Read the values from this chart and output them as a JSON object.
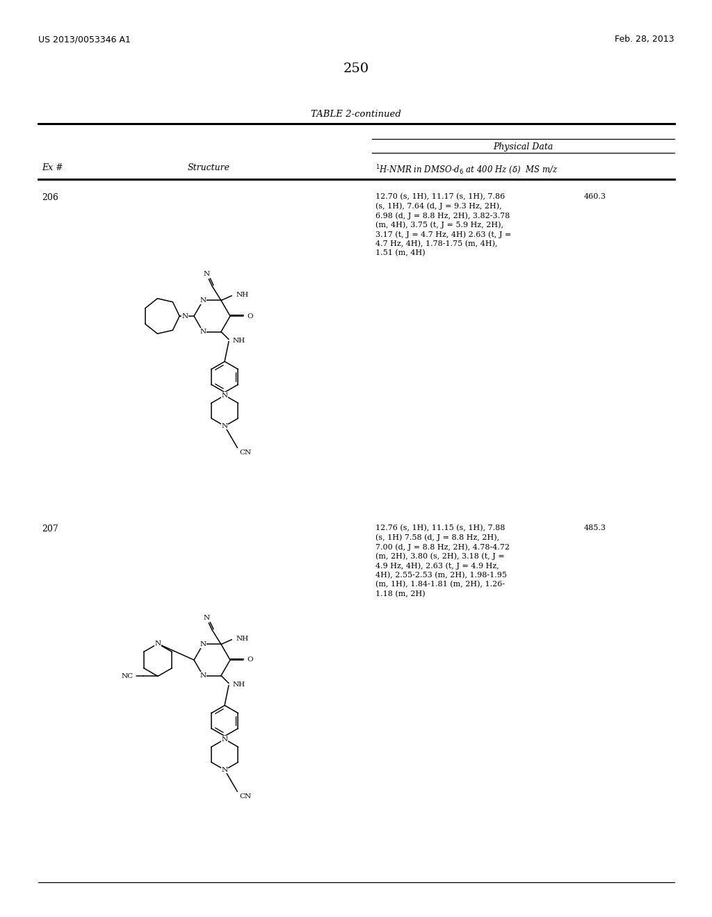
{
  "page_number": "250",
  "left_header": "US 2013/0053346 A1",
  "right_header": "Feb. 28, 2013",
  "table_title": "TABLE 2-continued",
  "col_ex": "Ex #",
  "col_structure": "Structure",
  "col_physical": "Physical Data",
  "ex206_num": "206",
  "ex206_nmr_lines": [
    "12.70 (s, 1H), 11.17 (s, 1H), 7.86",
    "(s, 1H), 7.64 (d, J = 9.3 Hz, 2H),",
    "6.98 (d, J = 8.8 Hz, 2H), 3.82-3.78",
    "(m, 4H), 3.75 (t, J = 5.9 Hz, 2H),",
    "3.17 (t, J = 4.7 Hz, 4H) 2.63 (t, J =",
    "4.7 Hz, 4H), 1.78-1.75 (m, 4H),",
    "1.51 (m, 4H)"
  ],
  "ex206_ms": "460.3",
  "ex207_num": "207",
  "ex207_nmr_lines": [
    "12.76 (s, 1H), 11.15 (s, 1H), 7.88",
    "(s, 1H) 7.58 (d, J = 8.8 Hz, 2H),",
    "7.00 (d, J = 8.8 Hz, 2H), 4.78-4.72",
    "(m, 2H), 3.80 (s, 2H), 3.18 (t, J =",
    "4.9 Hz, 4H), 2.63 (t, J = 4.9 Hz,",
    "4H), 2.55-2.53 (m, 2H), 1.98-1.95",
    "(m, 1H), 1.84-1.81 (m, 2H), 1.26-",
    "1.18 (m, 2H)"
  ],
  "ex207_ms": "485.3",
  "background_color": "#ffffff"
}
